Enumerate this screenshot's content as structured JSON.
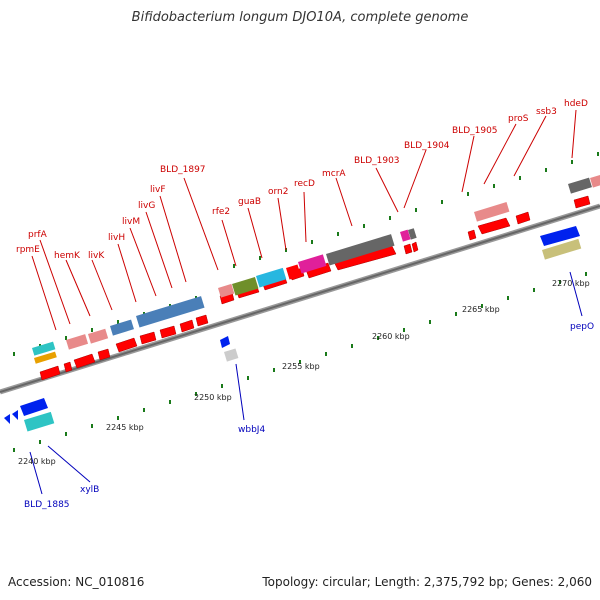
{
  "title": "Bifidobacterium longum DJO10A, complete genome",
  "footer": {
    "accession": "Accession: NC_010816",
    "summary": "Topology: circular; Length: 2,375,792 bp; Genes: 2,060"
  },
  "scale_labels": [
    {
      "text": "2240 kbp"
    },
    {
      "text": "2245 kbp"
    },
    {
      "text": "2250 kbp"
    },
    {
      "text": "2255 kbp"
    },
    {
      "text": "2260 kbp"
    },
    {
      "text": "2265 kbp"
    },
    {
      "text": "2270 kbp"
    }
  ],
  "top_genes": [
    {
      "name": "rpmE"
    },
    {
      "name": "prfA"
    },
    {
      "name": "hemK"
    },
    {
      "name": "livK"
    },
    {
      "name": "livH"
    },
    {
      "name": "livM"
    },
    {
      "name": "livG"
    },
    {
      "name": "livF"
    },
    {
      "name": "BLD_1897"
    },
    {
      "name": "rfe2"
    },
    {
      "name": "guaB"
    },
    {
      "name": "orn2"
    },
    {
      "name": "recD"
    },
    {
      "name": "mcrA"
    },
    {
      "name": "BLD_1903"
    },
    {
      "name": "BLD_1904"
    },
    {
      "name": "BLD_1905"
    },
    {
      "name": "proS"
    },
    {
      "name": "ssb3"
    },
    {
      "name": "hdeD"
    }
  ],
  "bottom_genes": [
    {
      "name": "BLD_1885"
    },
    {
      "name": "xylB"
    },
    {
      "name": "wbbJ4"
    },
    {
      "name": "pepO"
    }
  ],
  "colors": {
    "cds": "#ff0000",
    "pink": "#e88a8a",
    "steel_blue": "#4a7fb8",
    "olive": "#6f8f2a",
    "cyan": "#27b7e0",
    "magenta": "#e0209a",
    "dark_gray": "#666666",
    "teal": "#2ec4c4",
    "blue": "#0022ee",
    "khaki": "#c8c07a",
    "backbone": "#888888",
    "tick": "#1a7a1a"
  }
}
